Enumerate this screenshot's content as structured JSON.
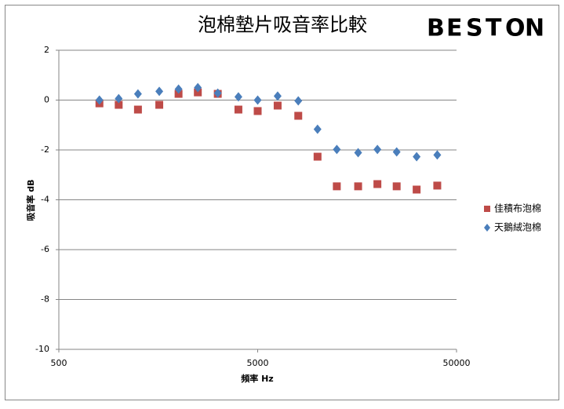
{
  "chart_data": {
    "type": "scatter",
    "title": "泡棉墊片吸音率比較",
    "logo": {
      "letters": [
        "B",
        "E",
        "S",
        "T",
        "O",
        "N"
      ],
      "colors": [
        "#2a7fc9",
        "#e63a2e",
        "#6cb83a",
        "#f39a1e",
        "#2a7fc9",
        "#e63a2e"
      ]
    },
    "x_label": "頻率 Hz",
    "y_label": "吸音率 dB",
    "x_log": true,
    "xlim": [
      500,
      50000
    ],
    "xticks": [
      500,
      5000,
      50000
    ],
    "ylim": [
      -10,
      2
    ],
    "yticks": [
      -10,
      -8,
      -6,
      -4,
      -2,
      0,
      2
    ],
    "grid": true,
    "legend": "right",
    "series": [
      {
        "name": "佳積布泡棉",
        "color": "#be4b48",
        "marker": "square",
        "x": [
          800,
          1000,
          1250,
          1600,
          2000,
          2500,
          3150,
          4000,
          5000,
          6300,
          8000,
          10000,
          12500,
          16000,
          20000,
          25000,
          31500,
          40000
        ],
        "values": [
          -0.13,
          -0.19,
          -0.38,
          -0.19,
          0.25,
          0.31,
          0.25,
          -0.38,
          -0.44,
          -0.22,
          -0.63,
          -2.27,
          -3.46,
          -3.46,
          -3.37,
          -3.46,
          -3.59,
          -3.43
        ]
      },
      {
        "name": "天鵝絨泡棉",
        "color": "#4a7ebb",
        "marker": "diamond",
        "x": [
          800,
          1000,
          1250,
          1600,
          2000,
          2500,
          3150,
          4000,
          5000,
          6300,
          8000,
          10000,
          12500,
          16000,
          20000,
          25000,
          31500,
          40000
        ],
        "values": [
          0,
          0.06,
          0.25,
          0.35,
          0.44,
          0.5,
          0.28,
          0.13,
          0,
          0.16,
          -0.03,
          -1.17,
          -1.98,
          -2.11,
          -1.98,
          -2.08,
          -2.27,
          -2.2
        ]
      }
    ]
  }
}
